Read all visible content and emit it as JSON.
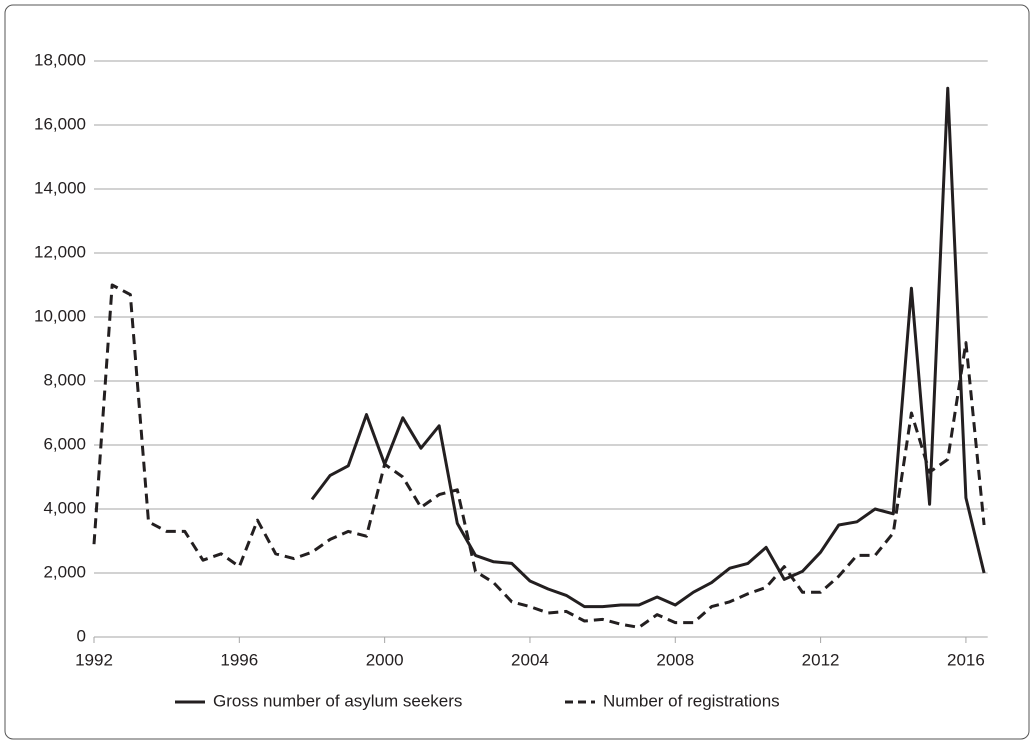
{
  "chart_data": {
    "type": "line",
    "x": [
      1992,
      1992.5,
      1993,
      1993.5,
      1994,
      1994.5,
      1995,
      1995.5,
      1996,
      1996.5,
      1997,
      1997.5,
      1998,
      1998.5,
      1999,
      1999.5,
      2000,
      2000.5,
      2001,
      2001.5,
      2002,
      2002.5,
      2003,
      2003.5,
      2004,
      2004.5,
      2005,
      2005.5,
      2006,
      2006.5,
      2007,
      2007.5,
      2008,
      2008.5,
      2009,
      2009.5,
      2010,
      2010.5,
      2011,
      2011.5,
      2012,
      2012.5,
      2013,
      2013.5,
      2014,
      2014.5,
      2015,
      2015.5,
      2016,
      2016.5
    ],
    "series": [
      {
        "name": "Gross number of asylum seekers",
        "color": "#231f20",
        "dash": "solid",
        "values": [
          null,
          null,
          null,
          null,
          null,
          null,
          null,
          null,
          null,
          null,
          null,
          null,
          4300,
          5050,
          5350,
          6950,
          5400,
          6850,
          5900,
          6600,
          3550,
          2550,
          2350,
          2300,
          1750,
          1500,
          1300,
          950,
          950,
          1000,
          1000,
          1250,
          1000,
          1400,
          1700,
          2150,
          2300,
          2800,
          1800,
          2050,
          2650,
          3500,
          3600,
          4000,
          3850,
          10900,
          4150,
          17150,
          4350,
          2000
        ]
      },
      {
        "name": "Number of registrations",
        "color": "#231f20",
        "dash": "dashed",
        "values": [
          2900,
          11000,
          10700,
          3600,
          3300,
          3300,
          2400,
          2600,
          2200,
          3650,
          2600,
          2450,
          2650,
          3050,
          3300,
          3150,
          5400,
          5000,
          4050,
          4450,
          4600,
          2050,
          1700,
          1100,
          950,
          750,
          800,
          500,
          550,
          400,
          300,
          700,
          450,
          450,
          950,
          1100,
          1350,
          1550,
          2200,
          1400,
          1400,
          1900,
          2550,
          2550,
          3250,
          7000,
          5150,
          5550,
          9200,
          3500
        ]
      }
    ],
    "xlim": [
      1992,
      2016.6
    ],
    "xticks": [
      1992,
      1996,
      2000,
      2004,
      2008,
      2012,
      2016
    ],
    "ylim": [
      0,
      18000
    ],
    "yticks": [
      0,
      {
        "value": 2000,
        "label": "2,000"
      },
      {
        "value": 4000,
        "label": "4,000"
      },
      {
        "value": 6000,
        "label": "6,000"
      },
      {
        "value": 8000,
        "label": "8,000"
      },
      {
        "value": 10000,
        "label": "10,000"
      },
      {
        "value": 12000,
        "label": "12,000"
      },
      {
        "value": 14000,
        "label": "14,000"
      },
      {
        "value": 16000,
        "label": "16,000"
      },
      {
        "value": 18000,
        "label": "18,000"
      }
    ],
    "grid": true,
    "legend": "bottom"
  }
}
